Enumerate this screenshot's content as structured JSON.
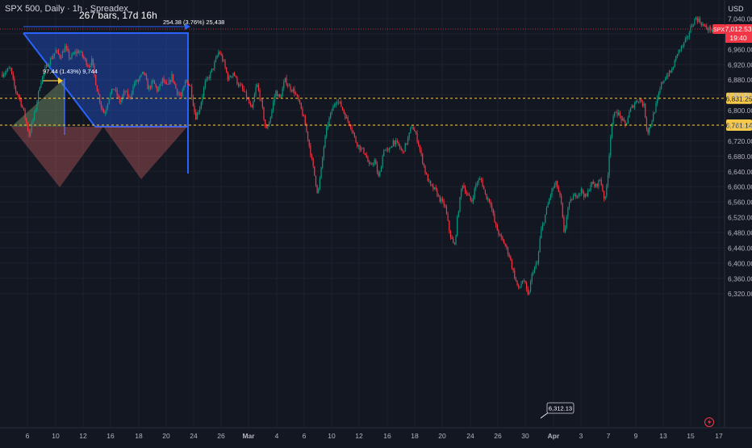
{
  "header": {
    "symbol_line": "SPX 500, Daily · 1h · Spreadex",
    "bars_info": "267 bars, 17d 16h"
  },
  "price_scale": {
    "currency": "USD",
    "ticks": [
      "7,040.00",
      "7,000.00",
      "6,960.00",
      "6,920.00",
      "6,880.00",
      "6,840.00",
      "6,800.00",
      "6,760.00",
      "6,720.00",
      "6,680.00",
      "6,640.00",
      "6,600.00",
      "6,560.00",
      "6,520.00",
      "6,480.00",
      "6,440.00",
      "6,400.00",
      "6,360.00",
      "6,320.00"
    ],
    "tick_values": [
      7040,
      7000,
      6960,
      6920,
      6880,
      6840,
      6800,
      6760,
      6720,
      6680,
      6640,
      6600,
      6560,
      6520,
      6480,
      6440,
      6400,
      6360,
      6320
    ]
  },
  "time_scale": {
    "ticks": [
      "6",
      "10",
      "12",
      "16",
      "18",
      "20",
      "24",
      "26",
      "Mar",
      "4",
      "6",
      "10",
      "12",
      "16",
      "18",
      "20",
      "24",
      "26",
      "30",
      "Apr",
      "3",
      "7",
      "9",
      "13",
      "15",
      "17"
    ],
    "bold": [
      "Mar",
      "Apr"
    ]
  },
  "last_price": {
    "symbol": "SPX",
    "price_label": "7,012.53",
    "countdown": "19:40",
    "value": 7012.53,
    "color": "#f23645"
  },
  "horizontal_lines": [
    {
      "label": "6,831.25",
      "value": 6831.25,
      "color": "#f7c948"
    },
    {
      "label": "6,761.14",
      "value": 6761.14,
      "color": "#f7c948"
    }
  ],
  "annotations": {
    "range_label": "254.38 (3.76%) 25,438",
    "measure_label": "97.44 (1.43%) 9,744",
    "low_label": "6,312.13"
  },
  "colors": {
    "up": "#089981",
    "down": "#f23645",
    "range_box": "#2962ff",
    "triangle": "#e06666",
    "background": "#131722",
    "grid": "#1e222d"
  },
  "chart_data": {
    "type": "candlestick",
    "title": "SPX 500, Daily · 1h · Spreadex",
    "ylim": [
      6300,
      7050
    ],
    "x_range": [
      0,
      905
    ],
    "path_points": [
      [
        0,
        6895
      ],
      [
        10,
        6910
      ],
      [
        16,
        6855
      ],
      [
        22,
        6830
      ],
      [
        28,
        6790
      ],
      [
        34,
        6735
      ],
      [
        42,
        6800
      ],
      [
        48,
        6870
      ],
      [
        56,
        6915
      ],
      [
        62,
        6935
      ],
      [
        68,
        6955
      ],
      [
        74,
        6940
      ],
      [
        80,
        6965
      ],
      [
        86,
        6935
      ],
      [
        92,
        6950
      ],
      [
        98,
        6955
      ],
      [
        104,
        6935
      ],
      [
        110,
        6915
      ],
      [
        114,
        6930
      ],
      [
        120,
        6860
      ],
      [
        126,
        6810
      ],
      [
        130,
        6790
      ],
      [
        136,
        6835
      ],
      [
        142,
        6860
      ],
      [
        150,
        6820
      ],
      [
        156,
        6850
      ],
      [
        162,
        6830
      ],
      [
        168,
        6870
      ],
      [
        174,
        6880
      ],
      [
        180,
        6900
      ],
      [
        186,
        6855
      ],
      [
        192,
        6875
      ],
      [
        198,
        6850
      ],
      [
        204,
        6880
      ],
      [
        210,
        6860
      ],
      [
        216,
        6890
      ],
      [
        222,
        6850
      ],
      [
        228,
        6835
      ],
      [
        234,
        6880
      ],
      [
        240,
        6860
      ],
      [
        246,
        6780
      ],
      [
        252,
        6810
      ],
      [
        258,
        6870
      ],
      [
        264,
        6890
      ],
      [
        270,
        6920
      ],
      [
        276,
        6955
      ],
      [
        282,
        6925
      ],
      [
        288,
        6880
      ],
      [
        294,
        6900
      ],
      [
        300,
        6870
      ],
      [
        306,
        6855
      ],
      [
        312,
        6830
      ],
      [
        318,
        6800
      ],
      [
        324,
        6870
      ],
      [
        330,
        6820
      ],
      [
        336,
        6745
      ],
      [
        342,
        6785
      ],
      [
        348,
        6850
      ],
      [
        354,
        6830
      ],
      [
        360,
        6880
      ],
      [
        366,
        6860
      ],
      [
        372,
        6850
      ],
      [
        378,
        6820
      ],
      [
        384,
        6780
      ],
      [
        390,
        6720
      ],
      [
        396,
        6650
      ],
      [
        402,
        6580
      ],
      [
        406,
        6640
      ],
      [
        410,
        6710
      ],
      [
        414,
        6760
      ],
      [
        420,
        6800
      ],
      [
        426,
        6830
      ],
      [
        432,
        6810
      ],
      [
        438,
        6780
      ],
      [
        444,
        6760
      ],
      [
        450,
        6720
      ],
      [
        456,
        6700
      ],
      [
        462,
        6690
      ],
      [
        468,
        6650
      ],
      [
        474,
        6670
      ],
      [
        480,
        6620
      ],
      [
        486,
        6700
      ],
      [
        492,
        6690
      ],
      [
        498,
        6720
      ],
      [
        504,
        6710
      ],
      [
        510,
        6690
      ],
      [
        516,
        6720
      ],
      [
        522,
        6760
      ],
      [
        528,
        6730
      ],
      [
        534,
        6680
      ],
      [
        540,
        6630
      ],
      [
        546,
        6600
      ],
      [
        552,
        6590
      ],
      [
        558,
        6565
      ],
      [
        564,
        6550
      ],
      [
        570,
        6480
      ],
      [
        576,
        6440
      ],
      [
        580,
        6520
      ],
      [
        586,
        6610
      ],
      [
        592,
        6580
      ],
      [
        598,
        6560
      ],
      [
        604,
        6610
      ],
      [
        610,
        6620
      ],
      [
        616,
        6575
      ],
      [
        622,
        6560
      ],
      [
        628,
        6500
      ],
      [
        634,
        6470
      ],
      [
        640,
        6450
      ],
      [
        646,
        6420
      ],
      [
        652,
        6370
      ],
      [
        658,
        6330
      ],
      [
        664,
        6360
      ],
      [
        670,
        6312
      ],
      [
        676,
        6380
      ],
      [
        682,
        6400
      ],
      [
        686,
        6480
      ],
      [
        690,
        6510
      ],
      [
        696,
        6560
      ],
      [
        700,
        6590
      ],
      [
        706,
        6610
      ],
      [
        712,
        6560
      ],
      [
        716,
        6470
      ],
      [
        720,
        6540
      ],
      [
        726,
        6570
      ],
      [
        732,
        6580
      ],
      [
        738,
        6590
      ],
      [
        744,
        6570
      ],
      [
        750,
        6610
      ],
      [
        756,
        6600
      ],
      [
        762,
        6620
      ],
      [
        768,
        6560
      ],
      [
        772,
        6640
      ],
      [
        776,
        6760
      ],
      [
        782,
        6800
      ],
      [
        788,
        6780
      ],
      [
        794,
        6760
      ],
      [
        800,
        6800
      ],
      [
        806,
        6820
      ],
      [
        812,
        6830
      ],
      [
        818,
        6810
      ],
      [
        822,
        6740
      ],
      [
        828,
        6775
      ],
      [
        834,
        6820
      ],
      [
        840,
        6870
      ],
      [
        846,
        6890
      ],
      [
        852,
        6900
      ],
      [
        856,
        6920
      ],
      [
        860,
        6950
      ],
      [
        866,
        6965
      ],
      [
        872,
        6985
      ],
      [
        878,
        7020
      ],
      [
        884,
        7042
      ],
      [
        890,
        7030
      ],
      [
        896,
        7015
      ],
      [
        905,
        7012
      ]
    ]
  }
}
